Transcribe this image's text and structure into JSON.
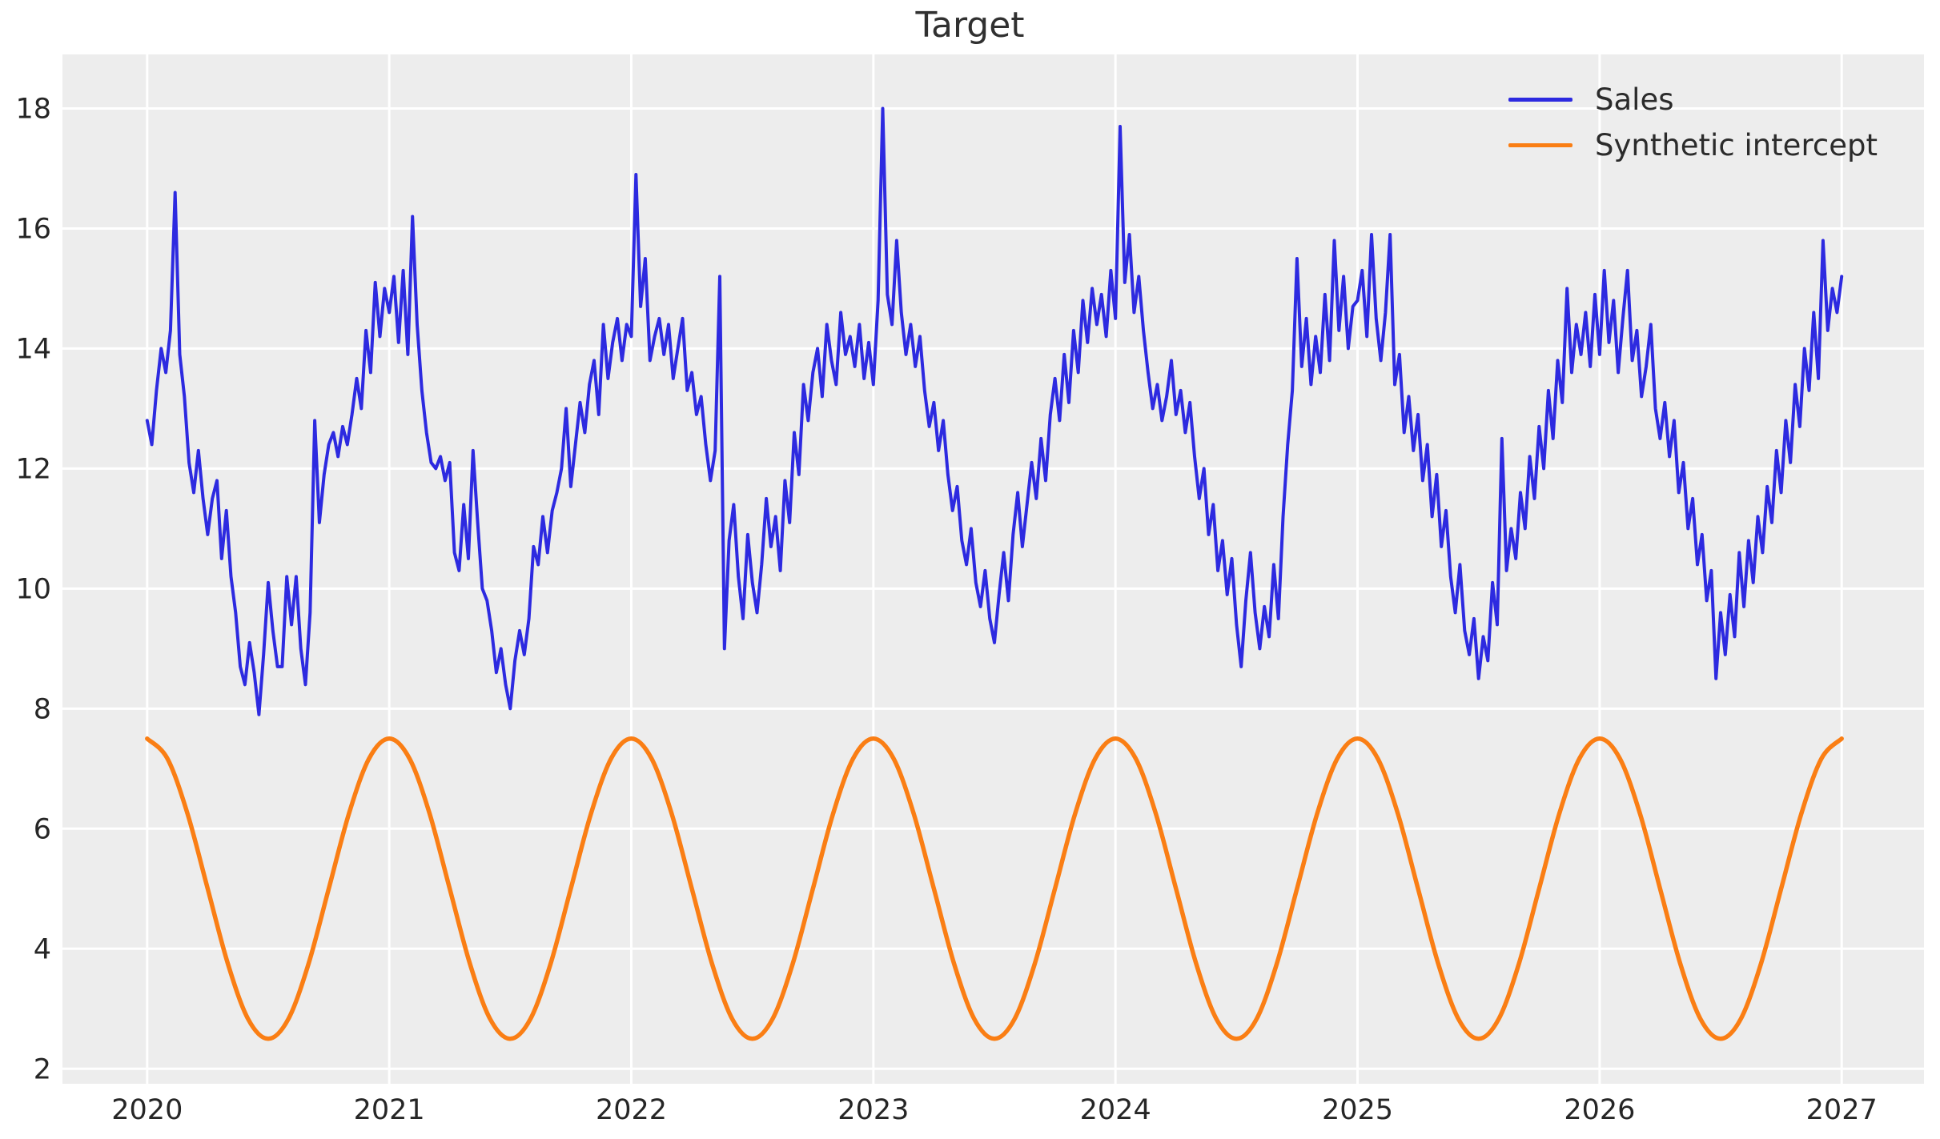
{
  "chart_data": {
    "type": "line",
    "title": "Target",
    "xlabel": "",
    "ylabel": "",
    "grid": true,
    "legend_position": "upper right",
    "plot_background": "#ededed",
    "grid_color": "#ffffff",
    "tick_color": "#262626",
    "xlim": [
      2019.65,
      2027.34
    ],
    "ylim": [
      1.75,
      18.9
    ],
    "xticks": [
      2020,
      2021,
      2022,
      2023,
      2024,
      2025,
      2026,
      2027
    ],
    "yticks": [
      2,
      4,
      6,
      8,
      10,
      12,
      14,
      16,
      18
    ],
    "series": [
      {
        "name": "Sales",
        "color": "#2d2ae0",
        "line_width": 4,
        "style": "jagged",
        "x_start": 2020,
        "x_step": 0.01923077,
        "values": [
          12.8,
          12.4,
          13.3,
          14.0,
          13.6,
          14.3,
          16.6,
          13.9,
          13.2,
          12.1,
          11.6,
          12.3,
          11.5,
          10.9,
          11.5,
          11.8,
          10.5,
          11.3,
          10.2,
          9.6,
          8.7,
          8.4,
          9.1,
          8.6,
          7.9,
          8.9,
          10.1,
          9.3,
          8.7,
          8.7,
          10.2,
          9.4,
          10.2,
          9.0,
          8.4,
          9.6,
          12.8,
          11.1,
          11.9,
          12.4,
          12.6,
          12.2,
          12.7,
          12.4,
          12.9,
          13.5,
          13.0,
          14.3,
          13.6,
          15.1,
          14.2,
          15.0,
          14.6,
          15.2,
          14.1,
          15.3,
          13.9,
          16.2,
          14.4,
          13.3,
          12.6,
          12.1,
          12.0,
          12.2,
          11.8,
          12.1,
          10.6,
          10.3,
          11.4,
          10.5,
          12.3,
          11.1,
          10.0,
          9.8,
          9.3,
          8.6,
          9.0,
          8.4,
          8.0,
          8.8,
          9.3,
          8.9,
          9.5,
          10.7,
          10.4,
          11.2,
          10.6,
          11.3,
          11.6,
          12.0,
          13.0,
          11.7,
          12.4,
          13.1,
          12.6,
          13.4,
          13.8,
          12.9,
          14.4,
          13.5,
          14.1,
          14.5,
          13.8,
          14.4,
          14.2,
          16.9,
          14.7,
          15.5,
          13.8,
          14.2,
          14.5,
          13.9,
          14.4,
          13.5,
          14.0,
          14.5,
          13.3,
          13.6,
          12.9,
          13.2,
          12.4,
          11.8,
          12.3,
          15.2,
          9.0,
          10.8,
          11.4,
          10.2,
          9.5,
          10.9,
          10.1,
          9.6,
          10.4,
          11.5,
          10.7,
          11.2,
          10.3,
          11.8,
          11.1,
          12.6,
          11.9,
          13.4,
          12.8,
          13.6,
          14.0,
          13.2,
          14.4,
          13.8,
          13.4,
          14.6,
          13.9,
          14.2,
          13.7,
          14.4,
          13.5,
          14.1,
          13.4,
          14.8,
          18.0,
          14.9,
          14.4,
          15.8,
          14.6,
          13.9,
          14.4,
          13.7,
          14.2,
          13.3,
          12.7,
          13.1,
          12.3,
          12.8,
          11.9,
          11.3,
          11.7,
          10.8,
          10.4,
          11.0,
          10.1,
          9.7,
          10.3,
          9.5,
          9.1,
          9.9,
          10.6,
          9.8,
          10.9,
          11.6,
          10.7,
          11.4,
          12.1,
          11.5,
          12.5,
          11.8,
          12.9,
          13.5,
          12.8,
          13.9,
          13.1,
          14.3,
          13.6,
          14.8,
          14.1,
          15.0,
          14.4,
          14.9,
          14.2,
          15.3,
          14.5,
          17.7,
          15.1,
          15.9,
          14.6,
          15.2,
          14.3,
          13.6,
          13.0,
          13.4,
          12.8,
          13.2,
          13.8,
          12.9,
          13.3,
          12.6,
          13.1,
          12.2,
          11.5,
          12.0,
          10.9,
          11.4,
          10.3,
          10.8,
          9.9,
          10.5,
          9.4,
          8.7,
          9.8,
          10.6,
          9.6,
          9.0,
          9.7,
          9.2,
          10.4,
          9.5,
          11.2,
          12.4,
          13.3,
          15.5,
          13.7,
          14.5,
          13.4,
          14.2,
          13.6,
          14.9,
          13.8,
          15.8,
          14.3,
          15.2,
          14.0,
          14.7,
          14.8,
          15.3,
          14.2,
          15.9,
          14.5,
          13.8,
          14.6,
          15.9,
          13.4,
          13.9,
          12.6,
          13.2,
          12.3,
          12.9,
          11.8,
          12.4,
          11.2,
          11.9,
          10.7,
          11.3,
          10.2,
          9.6,
          10.4,
          9.3,
          8.9,
          9.5,
          8.5,
          9.2,
          8.8,
          10.1,
          9.4,
          12.5,
          10.3,
          11.0,
          10.5,
          11.6,
          11.0,
          12.2,
          11.5,
          12.7,
          12.0,
          13.3,
          12.5,
          13.8,
          13.1,
          15.0,
          13.6,
          14.4,
          13.9,
          14.6,
          13.7,
          14.9,
          13.9,
          15.3,
          14.1,
          14.8,
          13.6,
          14.5,
          15.3,
          13.8,
          14.3,
          13.2,
          13.7,
          14.4,
          13.0,
          12.5,
          13.1,
          12.2,
          12.8,
          11.6,
          12.1,
          11.0,
          11.5,
          10.4,
          10.9,
          9.8,
          10.3,
          8.5,
          9.6,
          8.9,
          9.9,
          9.2,
          10.6,
          9.7,
          10.8,
          10.1,
          11.2,
          10.6,
          11.7,
          11.1,
          12.3,
          11.6,
          12.8,
          12.1,
          13.4,
          12.7,
          14.0,
          13.3,
          14.6,
          13.5,
          15.8,
          14.3,
          15.0,
          14.6,
          15.2
        ]
      },
      {
        "name": "Synthetic intercept",
        "color": "#fa7e14",
        "line_width": 5.5,
        "style": "smooth",
        "period_years": 1,
        "seasonal_max": 7.5,
        "seasonal_min": 2.5,
        "x_start": 2020,
        "x_step": 0.08333333,
        "values": [
          7.5,
          7.17,
          6.25,
          5.0,
          3.75,
          2.83,
          2.5,
          2.83,
          3.75,
          5.0,
          6.25,
          7.17,
          7.5,
          7.17,
          6.25,
          5.0,
          3.75,
          2.83,
          2.5,
          2.83,
          3.75,
          5.0,
          6.25,
          7.17,
          7.5,
          7.17,
          6.25,
          5.0,
          3.75,
          2.83,
          2.5,
          2.83,
          3.75,
          5.0,
          6.25,
          7.17,
          7.5,
          7.17,
          6.25,
          5.0,
          3.75,
          2.83,
          2.5,
          2.83,
          3.75,
          5.0,
          6.25,
          7.17,
          7.5,
          7.17,
          6.25,
          5.0,
          3.75,
          2.83,
          2.5,
          2.83,
          3.75,
          5.0,
          6.25,
          7.17,
          7.5,
          7.17,
          6.25,
          5.0,
          3.75,
          2.83,
          2.5,
          2.83,
          3.75,
          5.0,
          6.25,
          7.17,
          7.5,
          7.17,
          6.25,
          5.0,
          3.75,
          2.83,
          2.5,
          2.83,
          3.75,
          5.0,
          6.25,
          7.17,
          7.5
        ]
      }
    ]
  }
}
